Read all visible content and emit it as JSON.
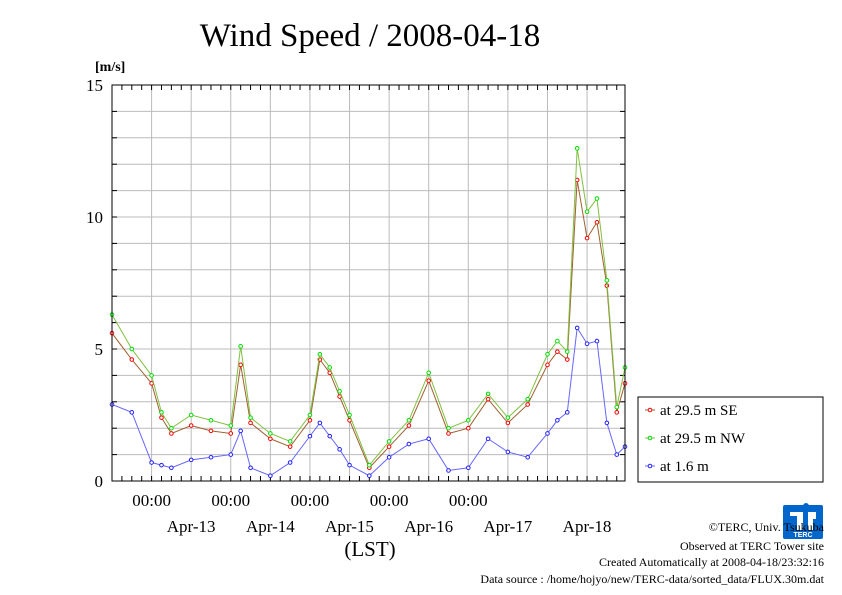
{
  "title": "Wind Speed / 2008-04-18",
  "y_unit": "[m/s]",
  "x_axis_label": "(LST)",
  "chart_data": {
    "type": "line",
    "title": "Wind Speed / 2008-04-18",
    "xlabel": "(LST)",
    "ylabel": "[m/s]",
    "ylim": [
      0,
      15
    ],
    "yticks": [
      "0",
      "5",
      "10",
      "15"
    ],
    "xlim": [
      "2008-04-12 12:00",
      "2008-04-18 23:30"
    ],
    "time_ticks": [
      "00:00",
      "00:00",
      "00:00",
      "00:00",
      "00:00"
    ],
    "date_labels": [
      "Apr-13",
      "Apr-14",
      "Apr-15",
      "Apr-16",
      "Apr-17",
      "Apr-18"
    ],
    "grid": true,
    "legend_position": "right",
    "series": [
      {
        "name": "at 29.5 m SE",
        "color": "#ff0000",
        "line_color": "#a06030",
        "x": [
          "2008-04-12 12:00",
          "2008-04-12 18:00",
          "2008-04-13 00:00",
          "2008-04-13 03:00",
          "2008-04-13 06:00",
          "2008-04-13 12:00",
          "2008-04-13 18:00",
          "2008-04-14 00:00",
          "2008-04-14 03:00",
          "2008-04-14 06:00",
          "2008-04-14 12:00",
          "2008-04-14 18:00",
          "2008-04-15 00:00",
          "2008-04-15 03:00",
          "2008-04-15 06:00",
          "2008-04-15 09:00",
          "2008-04-15 12:00",
          "2008-04-15 18:00",
          "2008-04-16 00:00",
          "2008-04-16 06:00",
          "2008-04-16 12:00",
          "2008-04-16 18:00",
          "2008-04-17 00:00",
          "2008-04-17 06:00",
          "2008-04-17 12:00",
          "2008-04-17 18:00",
          "2008-04-18 00:00",
          "2008-04-18 03:00",
          "2008-04-18 06:00",
          "2008-04-18 09:00",
          "2008-04-18 12:00",
          "2008-04-18 15:00",
          "2008-04-18 18:00",
          "2008-04-18 21:00",
          "2008-04-18 23:30"
        ],
        "y": [
          5.6,
          4.6,
          3.7,
          2.4,
          1.8,
          2.1,
          1.9,
          1.8,
          4.4,
          2.2,
          1.6,
          1.3,
          2.3,
          4.6,
          4.1,
          3.2,
          2.3,
          0.5,
          1.3,
          2.1,
          3.8,
          1.8,
          2.0,
          3.1,
          2.2,
          2.9,
          4.4,
          4.9,
          4.6,
          11.4,
          9.2,
          9.8,
          7.4,
          2.6,
          3.7
        ]
      },
      {
        "name": "at 29.5 m NW",
        "color": "#00dd00",
        "line_color": "#80c040",
        "x": [
          "2008-04-12 12:00",
          "2008-04-12 18:00",
          "2008-04-13 00:00",
          "2008-04-13 03:00",
          "2008-04-13 06:00",
          "2008-04-13 12:00",
          "2008-04-13 18:00",
          "2008-04-14 00:00",
          "2008-04-14 03:00",
          "2008-04-14 06:00",
          "2008-04-14 12:00",
          "2008-04-14 18:00",
          "2008-04-15 00:00",
          "2008-04-15 03:00",
          "2008-04-15 06:00",
          "2008-04-15 09:00",
          "2008-04-15 12:00",
          "2008-04-15 18:00",
          "2008-04-16 00:00",
          "2008-04-16 06:00",
          "2008-04-16 12:00",
          "2008-04-16 18:00",
          "2008-04-17 00:00",
          "2008-04-17 06:00",
          "2008-04-17 12:00",
          "2008-04-17 18:00",
          "2008-04-18 00:00",
          "2008-04-18 03:00",
          "2008-04-18 06:00",
          "2008-04-18 09:00",
          "2008-04-18 12:00",
          "2008-04-18 15:00",
          "2008-04-18 18:00",
          "2008-04-18 21:00",
          "2008-04-18 23:30"
        ],
        "y": [
          6.3,
          5.0,
          4.0,
          2.6,
          2.0,
          2.5,
          2.3,
          2.1,
          5.1,
          2.4,
          1.8,
          1.5,
          2.5,
          4.8,
          4.3,
          3.4,
          2.5,
          0.6,
          1.5,
          2.3,
          4.1,
          2.0,
          2.3,
          3.3,
          2.4,
          3.1,
          4.8,
          5.3,
          4.9,
          12.6,
          10.2,
          10.7,
          7.6,
          2.8,
          4.3
        ]
      },
      {
        "name": "at 1.6 m",
        "color": "#2222ff",
        "line_color": "#6666ff",
        "x": [
          "2008-04-12 12:00",
          "2008-04-12 18:00",
          "2008-04-13 00:00",
          "2008-04-13 03:00",
          "2008-04-13 06:00",
          "2008-04-13 12:00",
          "2008-04-13 18:00",
          "2008-04-14 00:00",
          "2008-04-14 03:00",
          "2008-04-14 06:00",
          "2008-04-14 12:00",
          "2008-04-14 18:00",
          "2008-04-15 00:00",
          "2008-04-15 03:00",
          "2008-04-15 06:00",
          "2008-04-15 09:00",
          "2008-04-15 12:00",
          "2008-04-15 18:00",
          "2008-04-16 00:00",
          "2008-04-16 06:00",
          "2008-04-16 12:00",
          "2008-04-16 18:00",
          "2008-04-17 00:00",
          "2008-04-17 06:00",
          "2008-04-17 12:00",
          "2008-04-17 18:00",
          "2008-04-18 00:00",
          "2008-04-18 03:00",
          "2008-04-18 06:00",
          "2008-04-18 09:00",
          "2008-04-18 12:00",
          "2008-04-18 15:00",
          "2008-04-18 18:00",
          "2008-04-18 21:00",
          "2008-04-18 23:30"
        ],
        "y": [
          2.9,
          2.6,
          0.7,
          0.6,
          0.5,
          0.8,
          0.9,
          1.0,
          1.9,
          0.5,
          0.2,
          0.7,
          1.7,
          2.2,
          1.7,
          1.2,
          0.6,
          0.2,
          0.9,
          1.4,
          1.6,
          0.4,
          0.5,
          1.6,
          1.1,
          0.9,
          1.8,
          2.3,
          2.6,
          5.8,
          5.2,
          5.3,
          2.2,
          1.0,
          1.3
        ]
      }
    ]
  },
  "credits": {
    "copyright": "©TERC, Univ. Tsukuba",
    "site": "Observed at TERC Tower site",
    "created": "Created Automatically at 2008-04-18/23:32:16",
    "source": "Data source : /home/hojyo/new/TERC-data/sorted_data/FLUX.30m.dat"
  },
  "logo": {
    "text": "TERC",
    "color": "#0066cc"
  }
}
